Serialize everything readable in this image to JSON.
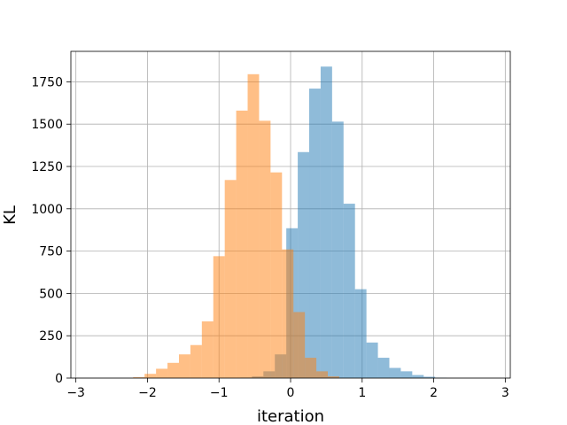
{
  "chart_data": {
    "type": "bar",
    "subtype": "histogram",
    "title": "",
    "xlabel": "iteration",
    "ylabel": "KL",
    "xlim": [
      -3.07,
      3.07
    ],
    "ylim": [
      0,
      1930
    ],
    "grid": true,
    "x_ticks": [
      -3,
      -2,
      -1,
      0,
      1,
      2,
      3
    ],
    "x_tick_labels": [
      "−3",
      "−2",
      "−1",
      "0",
      "1",
      "2",
      "3"
    ],
    "y_ticks": [
      0,
      250,
      500,
      750,
      1000,
      1250,
      1500,
      1750
    ],
    "y_tick_labels": [
      "0",
      "250",
      "500",
      "750",
      "1000",
      "1250",
      "1500",
      "1750"
    ],
    "series": [
      {
        "color": "#1f77b4",
        "alpha": 0.5,
        "bins": [
          {
            "x0": -0.7,
            "x1": -0.54,
            "count": 3
          },
          {
            "x0": -0.54,
            "x1": -0.38,
            "count": 10
          },
          {
            "x0": -0.38,
            "x1": -0.22,
            "count": 40
          },
          {
            "x0": -0.22,
            "x1": -0.06,
            "count": 140
          },
          {
            "x0": -0.06,
            "x1": 0.1,
            "count": 885
          },
          {
            "x0": 0.1,
            "x1": 0.26,
            "count": 1335
          },
          {
            "x0": 0.26,
            "x1": 0.42,
            "count": 1710
          },
          {
            "x0": 0.42,
            "x1": 0.58,
            "count": 1840
          },
          {
            "x0": 0.58,
            "x1": 0.74,
            "count": 1515
          },
          {
            "x0": 0.74,
            "x1": 0.9,
            "count": 1030
          },
          {
            "x0": 0.9,
            "x1": 1.06,
            "count": 525
          },
          {
            "x0": 1.06,
            "x1": 1.22,
            "count": 210
          },
          {
            "x0": 1.22,
            "x1": 1.38,
            "count": 120
          },
          {
            "x0": 1.38,
            "x1": 1.54,
            "count": 60
          },
          {
            "x0": 1.54,
            "x1": 1.7,
            "count": 40
          },
          {
            "x0": 1.7,
            "x1": 1.86,
            "count": 18
          },
          {
            "x0": 1.86,
            "x1": 2.02,
            "count": 8
          },
          {
            "x0": 2.02,
            "x1": 2.18,
            "count": 2
          }
        ]
      },
      {
        "color": "#ff7f0e",
        "alpha": 0.5,
        "bins": [
          {
            "x0": -2.2,
            "x1": -2.04,
            "count": 5
          },
          {
            "x0": -2.04,
            "x1": -1.88,
            "count": 25
          },
          {
            "x0": -1.88,
            "x1": -1.72,
            "count": 55
          },
          {
            "x0": -1.72,
            "x1": -1.56,
            "count": 90
          },
          {
            "x0": -1.56,
            "x1": -1.4,
            "count": 140
          },
          {
            "x0": -1.4,
            "x1": -1.24,
            "count": 195
          },
          {
            "x0": -1.24,
            "x1": -1.08,
            "count": 335
          },
          {
            "x0": -1.08,
            "x1": -0.92,
            "count": 720
          },
          {
            "x0": -0.92,
            "x1": -0.76,
            "count": 1170
          },
          {
            "x0": -0.76,
            "x1": -0.6,
            "count": 1580
          },
          {
            "x0": -0.6,
            "x1": -0.44,
            "count": 1795
          },
          {
            "x0": -0.44,
            "x1": -0.28,
            "count": 1520
          },
          {
            "x0": -0.28,
            "x1": -0.12,
            "count": 1215
          },
          {
            "x0": -0.12,
            "x1": 0.04,
            "count": 760
          },
          {
            "x0": 0.04,
            "x1": 0.2,
            "count": 390
          },
          {
            "x0": 0.2,
            "x1": 0.36,
            "count": 120
          },
          {
            "x0": 0.36,
            "x1": 0.52,
            "count": 40
          },
          {
            "x0": 0.52,
            "x1": 0.68,
            "count": 10
          }
        ]
      }
    ]
  }
}
